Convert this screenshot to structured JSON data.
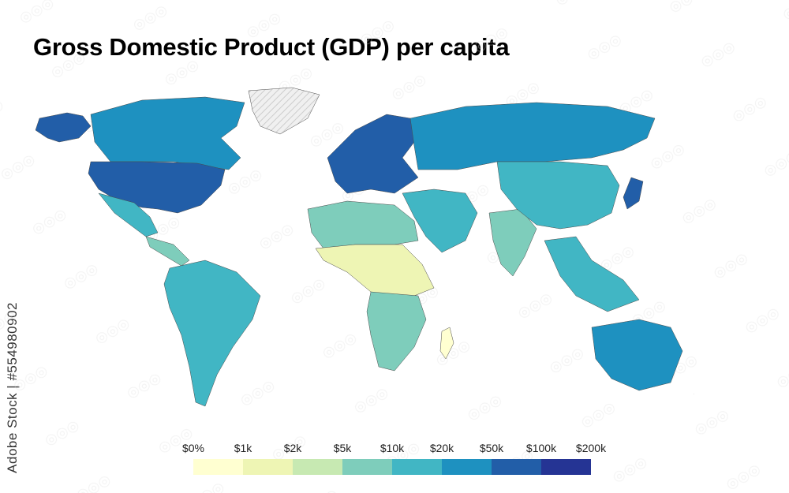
{
  "title": "Gross Domestic Product (GDP) per capita",
  "side_label": "Adobe Stock | #554980902",
  "legend": {
    "ticks": [
      "$0%",
      "$1k",
      "$2k",
      "$5k",
      "$10k",
      "$20k",
      "$50k",
      "$100k",
      "$200k"
    ],
    "colors": [
      "#ffffd1",
      "#eef5b4",
      "#c7e9b2",
      "#7ecdbb",
      "#41b6c4",
      "#1e91c0",
      "#225ea8",
      "#253494"
    ]
  },
  "colors": {
    "nodata": "#eeeeee",
    "border": "#4a4a4a"
  },
  "regions": [
    {
      "name": "north-america",
      "class": 5
    },
    {
      "name": "united-states",
      "class": 6
    },
    {
      "name": "alaska",
      "class": 6
    },
    {
      "name": "greenland",
      "class": -1
    },
    {
      "name": "mexico",
      "class": 4
    },
    {
      "name": "central-america",
      "class": 3
    },
    {
      "name": "south-america",
      "class": 4
    },
    {
      "name": "europe",
      "class": 6
    },
    {
      "name": "russia",
      "class": 5
    },
    {
      "name": "middle-east",
      "class": 4
    },
    {
      "name": "north-africa",
      "class": 3
    },
    {
      "name": "sub-saharan-africa",
      "class": 1
    },
    {
      "name": "southern-africa",
      "class": 3
    },
    {
      "name": "india",
      "class": 3
    },
    {
      "name": "china",
      "class": 4
    },
    {
      "name": "southeast-asia",
      "class": 4
    },
    {
      "name": "japan",
      "class": 6
    },
    {
      "name": "australia",
      "class": 5
    },
    {
      "name": "new-zealand",
      "class": 5
    },
    {
      "name": "madagascar",
      "class": 0
    }
  ]
}
